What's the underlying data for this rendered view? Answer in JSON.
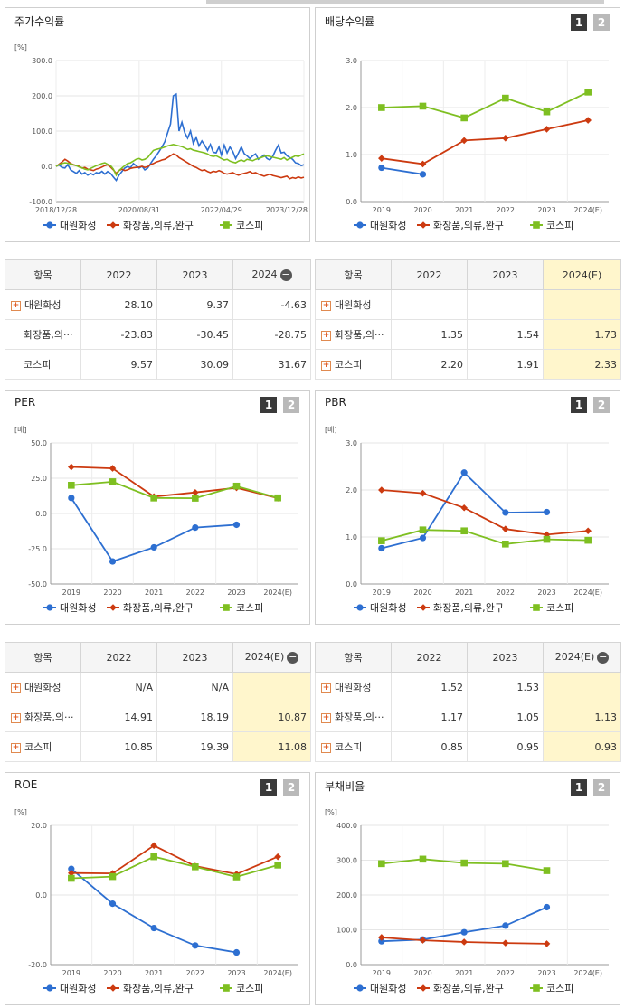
{
  "colors": {
    "series1": "#2d6fd1",
    "series2": "#cc3a10",
    "series3": "#7ebf21",
    "highlight": "#fff6cc"
  },
  "page_buttons": {
    "one": "1",
    "two": "2"
  },
  "series_names": [
    "대원화성",
    "화장품,의류,완구",
    "코스피"
  ],
  "chart_data": [
    {
      "id": "stock-return",
      "panel_title": "주가수익률",
      "type": "line",
      "unit_label": "[%]",
      "y_ticks": [
        "300.0",
        "200.0",
        "100.0",
        "0.0",
        "-100.0"
      ],
      "x_tick_labels": [
        "2018/12/28",
        "2020/08/31",
        "2022/04/29",
        "2023/12/28"
      ],
      "ylim": [
        -100,
        300
      ],
      "x_dates": [
        "2018-12-28",
        "2020-08-31",
        "2022-04-29",
        "2023-12-28"
      ],
      "series": [
        {
          "name": "대원화성",
          "x": [
            "2018-12-28",
            "2019-01-19",
            "2019-02-09",
            "2019-03-03",
            "2019-03-24",
            "2019-04-14",
            "2019-05-05",
            "2019-05-26",
            "2019-06-16",
            "2019-07-07",
            "2019-07-28",
            "2019-08-18",
            "2019-09-08",
            "2019-09-29",
            "2019-10-20",
            "2019-11-10",
            "2019-12-01",
            "2019-12-22",
            "2020-01-12",
            "2020-02-02",
            "2020-02-23",
            "2020-03-15",
            "2020-04-05",
            "2020-04-26",
            "2020-05-17",
            "2020-06-07",
            "2020-06-28",
            "2020-07-19",
            "2020-08-09",
            "2020-08-31",
            "2020-09-21",
            "2020-10-12",
            "2020-11-02",
            "2020-11-23",
            "2020-12-14",
            "2021-01-04",
            "2021-01-25",
            "2021-02-15",
            "2021-03-08",
            "2021-03-29",
            "2021-04-19",
            "2021-05-10",
            "2021-05-31",
            "2021-06-21",
            "2021-07-12",
            "2021-08-02",
            "2021-08-23",
            "2021-09-13",
            "2021-10-04",
            "2021-10-25",
            "2021-11-15",
            "2021-12-06",
            "2021-12-27",
            "2022-01-17",
            "2022-02-07",
            "2022-02-28",
            "2022-03-21",
            "2022-04-11",
            "2022-04-29",
            "2022-05-20",
            "2022-06-10",
            "2022-07-01",
            "2022-07-22",
            "2022-08-12",
            "2022-09-02",
            "2022-09-23",
            "2022-10-14",
            "2022-11-04",
            "2022-11-25",
            "2022-12-16",
            "2023-01-06",
            "2023-01-27",
            "2023-02-17",
            "2023-03-10",
            "2023-03-31",
            "2023-04-21",
            "2023-05-12",
            "2023-06-02",
            "2023-06-23",
            "2023-07-14",
            "2023-08-04",
            "2023-08-25",
            "2023-09-15",
            "2023-10-06",
            "2023-10-27",
            "2023-11-17",
            "2023-12-08",
            "2023-12-28"
          ],
          "values": [
            0,
            4,
            -3,
            -5,
            5,
            -10,
            -15,
            -20,
            -12,
            -22,
            -18,
            -25,
            -20,
            -24,
            -18,
            -20,
            -14,
            -22,
            -15,
            -20,
            -30,
            -40,
            -25,
            -15,
            -5,
            0,
            -4,
            8,
            2,
            -5,
            0,
            -10,
            -5,
            8,
            20,
            30,
            42,
            55,
            70,
            95,
            120,
            200,
            205,
            100,
            125,
            95,
            80,
            100,
            65,
            82,
            58,
            72,
            60,
            45,
            62,
            40,
            38,
            55,
            32,
            60,
            38,
            55,
            42,
            22,
            38,
            55,
            36,
            30,
            22,
            30,
            35,
            20,
            26,
            32,
            22,
            18,
            28,
            45,
            60,
            38,
            40,
            30,
            25,
            20,
            10,
            8,
            2,
            5
          ]
        },
        {
          "name": "화장품,의류,완구",
          "x": [
            "2018-12-28",
            "2019-01-19",
            "2019-02-09",
            "2019-03-03",
            "2019-03-24",
            "2019-04-14",
            "2019-05-05",
            "2019-05-26",
            "2019-06-16",
            "2019-07-07",
            "2019-07-28",
            "2019-08-18",
            "2019-09-08",
            "2019-09-29",
            "2019-10-20",
            "2019-11-10",
            "2019-12-01",
            "2019-12-22",
            "2020-01-12",
            "2020-02-02",
            "2020-02-23",
            "2020-03-15",
            "2020-04-05",
            "2020-04-26",
            "2020-05-17",
            "2020-06-07",
            "2020-06-28",
            "2020-07-19",
            "2020-08-09",
            "2020-08-31",
            "2020-09-21",
            "2020-10-12",
            "2020-11-02",
            "2020-11-23",
            "2020-12-14",
            "2021-01-04",
            "2021-01-25",
            "2021-02-15",
            "2021-03-08",
            "2021-03-29",
            "2021-04-19",
            "2021-05-10",
            "2021-05-31",
            "2021-06-21",
            "2021-07-12",
            "2021-08-02",
            "2021-08-23",
            "2021-09-13",
            "2021-10-04",
            "2021-10-25",
            "2021-11-15",
            "2021-12-06",
            "2021-12-27",
            "2022-01-17",
            "2022-02-07",
            "2022-02-28",
            "2022-03-21",
            "2022-04-11",
            "2022-04-29",
            "2022-05-20",
            "2022-06-10",
            "2022-07-01",
            "2022-07-22",
            "2022-08-12",
            "2022-09-02",
            "2022-09-23",
            "2022-10-14",
            "2022-11-04",
            "2022-11-25",
            "2022-12-16",
            "2023-01-06",
            "2023-01-27",
            "2023-02-17",
            "2023-03-10",
            "2023-03-31",
            "2023-04-21",
            "2023-05-12",
            "2023-06-02",
            "2023-06-23",
            "2023-07-14",
            "2023-08-04",
            "2023-08-25",
            "2023-09-15",
            "2023-10-06",
            "2023-10-27",
            "2023-11-17",
            "2023-12-08",
            "2023-12-28"
          ],
          "values": [
            0,
            6,
            12,
            20,
            15,
            8,
            5,
            2,
            0,
            -5,
            -3,
            -8,
            -10,
            -12,
            -8,
            -6,
            -2,
            2,
            5,
            -2,
            -10,
            -20,
            -12,
            -8,
            -12,
            -10,
            -6,
            -4,
            -3,
            -2,
            0,
            -3,
            -1,
            5,
            8,
            12,
            15,
            18,
            20,
            25,
            30,
            35,
            32,
            25,
            20,
            15,
            10,
            5,
            0,
            -3,
            -8,
            -12,
            -10,
            -15,
            -18,
            -14,
            -16,
            -12,
            -15,
            -20,
            -22,
            -20,
            -18,
            -22,
            -25,
            -22,
            -20,
            -18,
            -15,
            -20,
            -18,
            -22,
            -25,
            -28,
            -25,
            -22,
            -26,
            -28,
            -30,
            -32,
            -30,
            -28,
            -35,
            -32,
            -34,
            -30,
            -33,
            -31
          ]
        },
        {
          "name": "코스피",
          "x": [
            "2018-12-28",
            "2019-01-19",
            "2019-02-09",
            "2019-03-03",
            "2019-03-24",
            "2019-04-14",
            "2019-05-05",
            "2019-05-26",
            "2019-06-16",
            "2019-07-07",
            "2019-07-28",
            "2019-08-18",
            "2019-09-08",
            "2019-09-29",
            "2019-10-20",
            "2019-11-10",
            "2019-12-01",
            "2019-12-22",
            "2020-01-12",
            "2020-02-02",
            "2020-02-23",
            "2020-03-15",
            "2020-04-05",
            "2020-04-26",
            "2020-05-17",
            "2020-06-07",
            "2020-06-28",
            "2020-07-19",
            "2020-08-09",
            "2020-08-31",
            "2020-09-21",
            "2020-10-12",
            "2020-11-02",
            "2020-11-23",
            "2020-12-14",
            "2021-01-04",
            "2021-01-25",
            "2021-02-15",
            "2021-03-08",
            "2021-03-29",
            "2021-04-19",
            "2021-05-10",
            "2021-05-31",
            "2021-06-21",
            "2021-07-12",
            "2021-08-02",
            "2021-08-23",
            "2021-09-13",
            "2021-10-04",
            "2021-10-25",
            "2021-11-15",
            "2021-12-06",
            "2021-12-27",
            "2022-01-17",
            "2022-02-07",
            "2022-02-28",
            "2022-03-21",
            "2022-04-11",
            "2022-04-29",
            "2022-05-20",
            "2022-06-10",
            "2022-07-01",
            "2022-07-22",
            "2022-08-12",
            "2022-09-02",
            "2022-09-23",
            "2022-10-14",
            "2022-11-04",
            "2022-11-25",
            "2022-12-16",
            "2023-01-06",
            "2023-01-27",
            "2023-02-17",
            "2023-03-10",
            "2023-03-31",
            "2023-04-21",
            "2023-05-12",
            "2023-06-02",
            "2023-06-23",
            "2023-07-14",
            "2023-08-04",
            "2023-08-25",
            "2023-09-15",
            "2023-10-06",
            "2023-10-27",
            "2023-11-17",
            "2023-12-08",
            "2023-12-28"
          ],
          "values": [
            0,
            5,
            8,
            10,
            9,
            7,
            4,
            2,
            -2,
            -4,
            -8,
            -10,
            -6,
            -2,
            2,
            5,
            8,
            10,
            6,
            2,
            -8,
            -25,
            -12,
            -5,
            2,
            8,
            10,
            15,
            20,
            22,
            18,
            20,
            25,
            35,
            45,
            48,
            50,
            52,
            55,
            58,
            60,
            62,
            60,
            58,
            56,
            52,
            48,
            50,
            46,
            44,
            42,
            40,
            38,
            35,
            30,
            28,
            30,
            26,
            22,
            18,
            20,
            15,
            12,
            10,
            15,
            18,
            14,
            20,
            18,
            16,
            20,
            22,
            25,
            28,
            30,
            28,
            26,
            24,
            22,
            20,
            25,
            18,
            22,
            26,
            30,
            28,
            32,
            35
          ]
        }
      ],
      "legend_position": "bottom"
    },
    {
      "id": "dividend-yield",
      "panel_title": "배당수익률",
      "type": "line",
      "unit_label": "",
      "y_ticks": [
        "3.0",
        "2.0",
        "1.0",
        "0.0"
      ],
      "ylim": [
        0,
        3
      ],
      "categories": [
        "2019",
        "2020",
        "2021",
        "2022",
        "2023",
        "2024(E)"
      ],
      "series": [
        {
          "name": "대원화성",
          "values": [
            0.72,
            0.58,
            null,
            null,
            null,
            null
          ]
        },
        {
          "name": "화장품,의류,완구",
          "values": [
            0.92,
            0.8,
            1.3,
            1.35,
            1.54,
            1.73
          ]
        },
        {
          "name": "코스피",
          "values": [
            2.0,
            2.03,
            1.78,
            2.2,
            1.91,
            2.33
          ]
        }
      ],
      "legend_position": "bottom"
    },
    {
      "id": "per",
      "panel_title": "PER",
      "type": "line",
      "unit_label": "[배]",
      "y_ticks": [
        "50.0",
        "25.0",
        "0.0",
        "-25.0",
        "-50.0"
      ],
      "ylim": [
        -50,
        50
      ],
      "categories": [
        "2019",
        "2020",
        "2021",
        "2022",
        "2023",
        "2024(E)"
      ],
      "series": [
        {
          "name": "대원화성",
          "values": [
            11.0,
            -34.0,
            -24.0,
            -10.0,
            -8.0,
            null
          ]
        },
        {
          "name": "화장품,의류,완구",
          "values": [
            33.0,
            32.0,
            12.0,
            14.91,
            18.19,
            10.87
          ]
        },
        {
          "name": "코스피",
          "values": [
            20.0,
            22.5,
            11.0,
            10.85,
            19.39,
            11.08
          ]
        }
      ],
      "legend_position": "bottom"
    },
    {
      "id": "pbr",
      "panel_title": "PBR",
      "type": "line",
      "unit_label": "[배]",
      "y_ticks": [
        "3.0",
        "2.0",
        "1.0",
        "0.0"
      ],
      "ylim": [
        0,
        3
      ],
      "categories": [
        "2019",
        "2020",
        "2021",
        "2022",
        "2023",
        "2024(E)"
      ],
      "series": [
        {
          "name": "대원화성",
          "values": [
            0.76,
            0.98,
            2.37,
            1.52,
            1.53,
            null
          ]
        },
        {
          "name": "화장품,의류,완구",
          "values": [
            2.0,
            1.93,
            1.62,
            1.17,
            1.05,
            1.13
          ]
        },
        {
          "name": "코스피",
          "values": [
            0.92,
            1.15,
            1.13,
            0.85,
            0.95,
            0.93
          ]
        }
      ],
      "legend_position": "bottom"
    },
    {
      "id": "roe",
      "panel_title": "ROE",
      "type": "line",
      "unit_label": "[%]",
      "y_ticks": [
        "20.0",
        "0.0",
        "-20.0"
      ],
      "ylim": [
        -20,
        20
      ],
      "categories": [
        "2019",
        "2020",
        "2021",
        "2022",
        "2023",
        "2024(E)"
      ],
      "series": [
        {
          "name": "대원화성",
          "values": [
            7.5,
            -2.5,
            -9.5,
            -14.5,
            -16.5,
            null
          ]
        },
        {
          "name": "화장품,의류,완구",
          "values": [
            6.3,
            6.2,
            14.2,
            8.3,
            6.0,
            11.0
          ]
        },
        {
          "name": "코스피",
          "values": [
            4.8,
            5.3,
            11.0,
            8.1,
            5.2,
            8.6
          ]
        }
      ],
      "legend_position": "bottom"
    },
    {
      "id": "debt-ratio",
      "panel_title": "부채비율",
      "type": "line",
      "unit_label": "[%]",
      "y_ticks": [
        "400.0",
        "300.0",
        "200.0",
        "100.0",
        "0.0"
      ],
      "ylim": [
        0,
        400
      ],
      "categories": [
        "2019",
        "2020",
        "2021",
        "2022",
        "2023",
        "2024(E)"
      ],
      "series": [
        {
          "name": "대원화성",
          "values": [
            67,
            72,
            93,
            112,
            165,
            null
          ]
        },
        {
          "name": "화장품,의류,완구",
          "values": [
            78,
            70,
            65,
            62,
            60,
            null
          ]
        },
        {
          "name": "코스피",
          "values": [
            290,
            303,
            292,
            290,
            270,
            null
          ]
        }
      ],
      "legend_position": "bottom"
    }
  ],
  "tables": {
    "stock": {
      "headers": [
        "항목",
        "2022",
        "2023",
        "2024"
      ],
      "rows": [
        {
          "name": "대원화성",
          "values": [
            "28.10",
            "9.37",
            "-4.63"
          ]
        },
        {
          "name": "화장품,의···",
          "values": [
            "-23.83",
            "-30.45",
            "-28.75"
          ]
        },
        {
          "name": "코스피",
          "values": [
            "9.57",
            "30.09",
            "31.67"
          ]
        }
      ]
    },
    "dividend": {
      "headers": [
        "항목",
        "2022",
        "2023",
        "2024(E)"
      ],
      "rows": [
        {
          "name": "대원화성",
          "values": [
            "",
            "",
            ""
          ]
        },
        {
          "name": "화장품,의···",
          "values": [
            "1.35",
            "1.54",
            "1.73"
          ]
        },
        {
          "name": "코스피",
          "values": [
            "2.20",
            "1.91",
            "2.33"
          ]
        }
      ]
    },
    "per": {
      "headers": [
        "항목",
        "2022",
        "2023",
        "2024(E)"
      ],
      "rows": [
        {
          "name": "대원화성",
          "values": [
            "N/A",
            "N/A",
            ""
          ]
        },
        {
          "name": "화장품,의···",
          "values": [
            "14.91",
            "18.19",
            "10.87"
          ]
        },
        {
          "name": "코스피",
          "values": [
            "10.85",
            "19.39",
            "11.08"
          ]
        }
      ]
    },
    "pbr": {
      "headers": [
        "항목",
        "2022",
        "2023",
        "2024(E)"
      ],
      "rows": [
        {
          "name": "대원화성",
          "values": [
            "1.52",
            "1.53",
            ""
          ]
        },
        {
          "name": "화장품,의···",
          "values": [
            "1.17",
            "1.05",
            "1.13"
          ]
        },
        {
          "name": "코스피",
          "values": [
            "0.85",
            "0.95",
            "0.93"
          ]
        }
      ]
    }
  }
}
